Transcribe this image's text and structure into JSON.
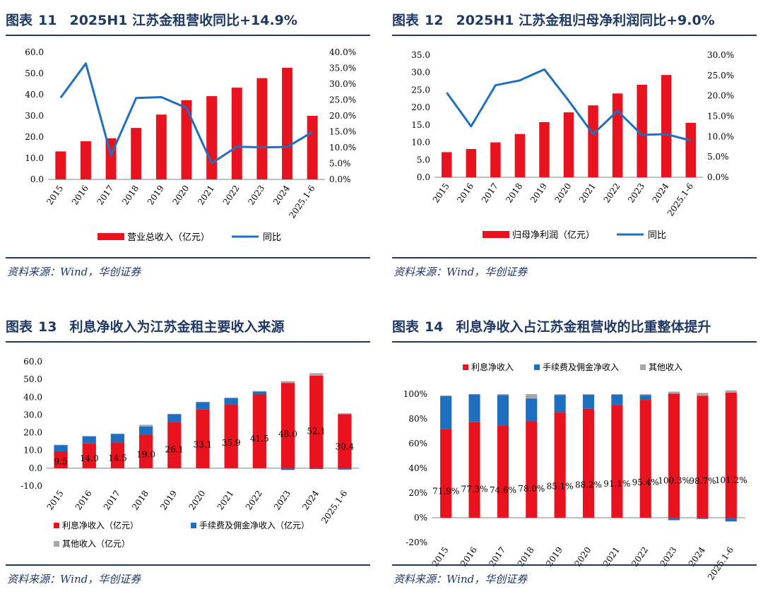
{
  "panels": [
    {
      "id": "p11",
      "title_prefix": "图表",
      "title_num": "11",
      "title_text": "2025H1 江苏金租营收同比+14.9%",
      "source": "资料来源：Wind，华创证券"
    },
    {
      "id": "p12",
      "title_prefix": "图表",
      "title_num": "12",
      "title_text": "2025H1 江苏金租归母净利润同比+9.0%",
      "source": "资料来源：Wind，华创证券"
    },
    {
      "id": "p13",
      "title_prefix": "图表",
      "title_num": "13",
      "title_text": "利息净收入为江苏金租主要收入来源",
      "source": "资料来源：Wind，华创证券"
    },
    {
      "id": "p14",
      "title_prefix": "图表",
      "title_num": "14",
      "title_text": "利息净收入占江苏金租营收的比重整体提升",
      "source": "资料来源：Wind，华创证券"
    }
  ],
  "colors": {
    "bar_red": "#e8131f",
    "line_blue": "#1f6fc0",
    "grey": "#a6a6a6",
    "navy": "#1f3864"
  },
  "chart_data": [
    {
      "type": "bar",
      "categories": [
        "2015",
        "2016",
        "2017",
        "2018",
        "2019",
        "2020",
        "2021",
        "2022",
        "2023",
        "2024",
        "2025.1-6"
      ],
      "series": [
        {
          "name": "营业总收入（亿元）",
          "type": "bar",
          "axis": "left",
          "values": [
            13.2,
            18.0,
            19.4,
            24.3,
            30.6,
            37.4,
            39.3,
            43.3,
            47.8,
            52.7,
            30.0
          ]
        },
        {
          "name": "同比",
          "type": "line",
          "axis": "right",
          "values": [
            25.7,
            36.5,
            7.6,
            25.6,
            25.9,
            22.5,
            5.1,
            10.3,
            10.1,
            10.2,
            14.9
          ]
        }
      ],
      "y_left": {
        "min": 0,
        "max": 60,
        "step": 10,
        "decimals": 1
      },
      "y_right": {
        "min": 0,
        "max": 40,
        "step": 5,
        "decimals": 1,
        "suffix": "%"
      },
      "legend_position": "bottom"
    },
    {
      "type": "bar",
      "categories": [
        "2015",
        "2016",
        "2017",
        "2018",
        "2019",
        "2020",
        "2021",
        "2022",
        "2023",
        "2024",
        "2025.1-6"
      ],
      "series": [
        {
          "name": "归母净利润（亿元）",
          "type": "bar",
          "axis": "left",
          "values": [
            7.2,
            8.1,
            10.0,
            12.4,
            15.8,
            18.6,
            20.6,
            24.0,
            26.5,
            29.3,
            15.6
          ]
        },
        {
          "name": "同比",
          "type": "line",
          "axis": "right",
          "values": [
            20.8,
            12.5,
            22.6,
            23.8,
            26.5,
            18.8,
            10.6,
            16.3,
            10.4,
            10.6,
            9.0
          ]
        }
      ],
      "y_left": {
        "min": 0,
        "max": 35,
        "step": 5,
        "decimals": 1
      },
      "y_right": {
        "min": 0,
        "max": 30,
        "step": 5,
        "decimals": 1,
        "suffix": "%"
      },
      "legend_position": "bottom"
    },
    {
      "type": "bar",
      "stacked": true,
      "categories": [
        "2015",
        "2016",
        "2017",
        "2018",
        "2019",
        "2020",
        "2021",
        "2022",
        "2023",
        "2024",
        "2025.1-6"
      ],
      "series": [
        {
          "name": "利息净收入（亿元）",
          "values": [
            9.5,
            14.0,
            14.5,
            19.0,
            26.1,
            33.1,
            35.9,
            41.5,
            48.0,
            52.1,
            30.4
          ],
          "labels": [
            "9.5",
            "14.0",
            "14.5",
            "19.0",
            "26.1",
            "33.1",
            "35.9",
            "41.5",
            "48.0",
            "52.1",
            "30.4"
          ]
        },
        {
          "name": "手续费及佣金净收入（亿元）",
          "values": [
            3.5,
            4.0,
            4.8,
            4.5,
            4.3,
            4.1,
            3.6,
            1.6,
            -1.0,
            -0.5,
            -0.8
          ]
        },
        {
          "name": "其他收入（亿元）",
          "values": [
            0.2,
            0.1,
            0.2,
            0.9,
            0.2,
            0.2,
            0.2,
            0.3,
            1.0,
            1.4,
            0.5
          ]
        }
      ],
      "y": {
        "min": -10,
        "max": 60,
        "step": 10,
        "decimals": 1
      },
      "legend_position": "bottom"
    },
    {
      "type": "bar",
      "stacked": true,
      "categories": [
        "2015",
        "2016",
        "2017",
        "2018",
        "2019",
        "2020",
        "2021",
        "2022",
        "2023",
        "2024",
        "2025.1-6"
      ],
      "series": [
        {
          "name": "利息净收入",
          "values": [
            71.9,
            77.3,
            74.6,
            78.0,
            85.1,
            88.2,
            91.1,
            95.4,
            100.3,
            98.7,
            101.2
          ],
          "labels": [
            "71.9%",
            "77.3%",
            "74.6%",
            "78.0%",
            "85.1%",
            "88.2%",
            "91.1%",
            "95.4%",
            "100.3%",
            "98.7%",
            "101.2%"
          ]
        },
        {
          "name": "手续费及佣金净收入",
          "values": [
            26.5,
            22.5,
            24.7,
            18.5,
            14.2,
            11.3,
            8.5,
            3.8,
            -2.0,
            -1.0,
            -3.0
          ]
        },
        {
          "name": "其他收入",
          "values": [
            0.6,
            0.2,
            0.7,
            3.5,
            0.7,
            0.5,
            0.4,
            0.8,
            1.7,
            2.3,
            1.8
          ]
        }
      ],
      "y": {
        "min": -20,
        "max": 100,
        "step": 20,
        "decimals": 0,
        "suffix": "%"
      },
      "legend_position": "top"
    }
  ]
}
